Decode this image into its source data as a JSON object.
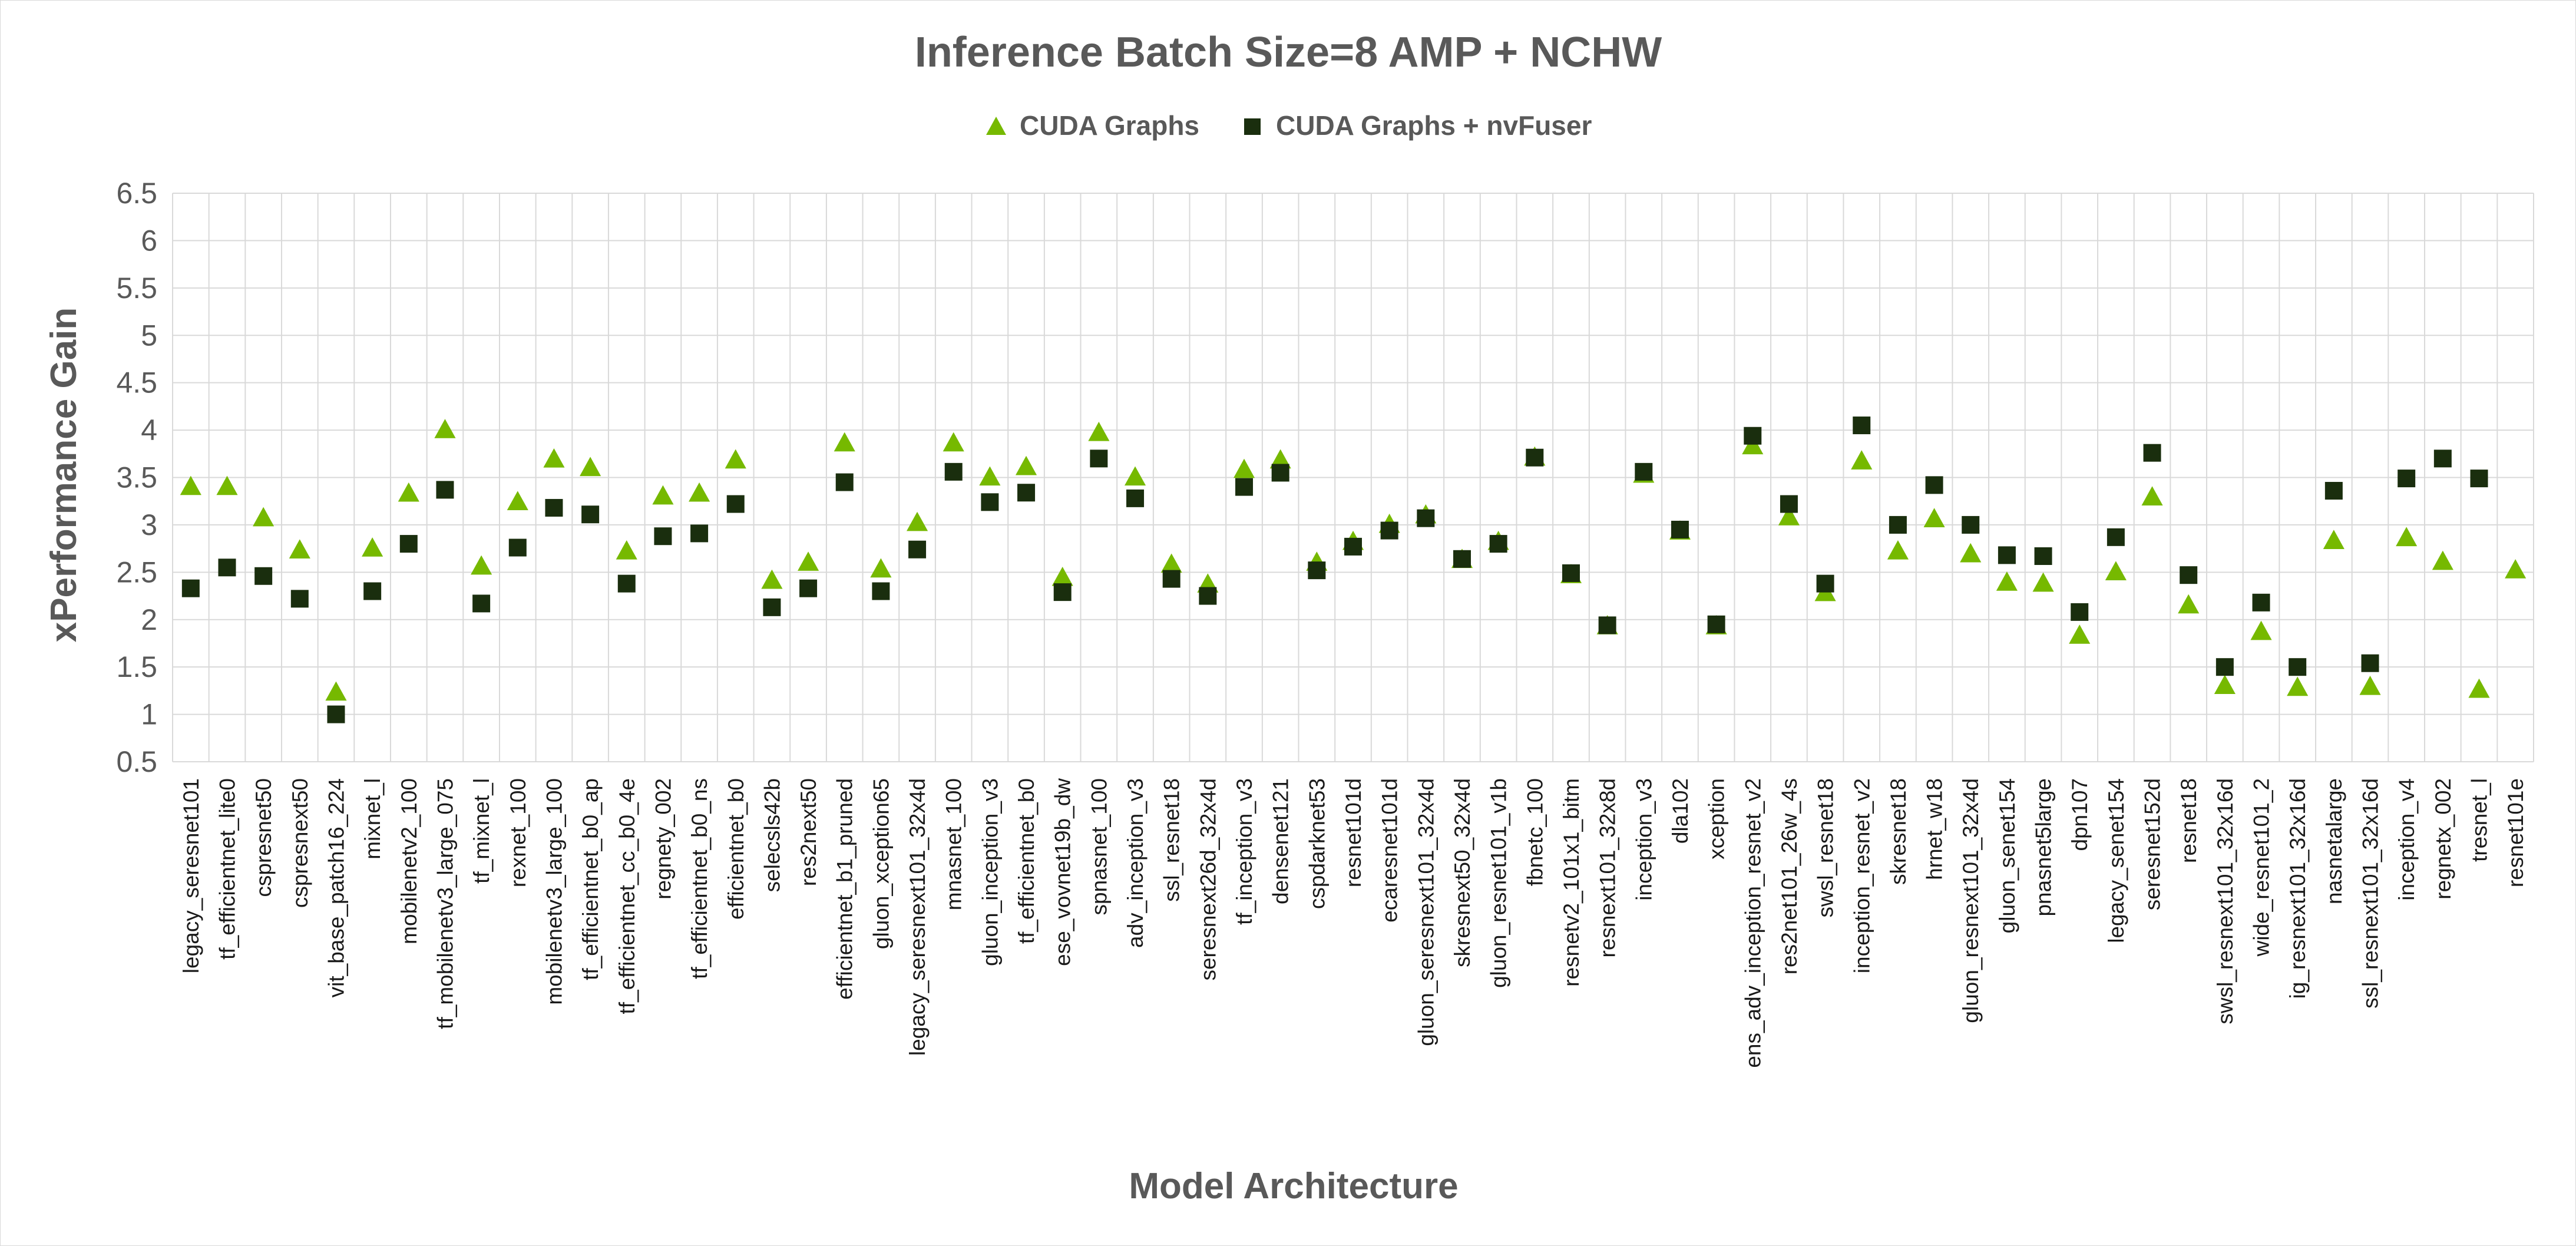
{
  "chart_data": {
    "type": "scatter",
    "title": "Inference Batch Size=8 AMP + NCHW",
    "xlabel": "Model Architecture",
    "ylabel": "xPerformance Gain",
    "ylim": [
      0.5,
      6.5
    ],
    "yticks": [
      "0.5",
      "1",
      "1.5",
      "2",
      "2.5",
      "3",
      "3.5",
      "4",
      "4.5",
      "5",
      "5.5",
      "6",
      "6.5"
    ],
    "grid": true,
    "legend_position": "top-center",
    "categories": [
      "legacy_seresnet101",
      "tf_efficientnet_lite0",
      "cspresnet50",
      "cspresnext50",
      "vit_base_patch16_224",
      "mixnet_l",
      "mobilenetv2_100",
      "tf_mobilenetv3_large_075",
      "tf_mixnet_l",
      "rexnet_100",
      "mobilenetv3_large_100",
      "tf_efficientnet_b0_ap",
      "tf_efficientnet_cc_b0_4e",
      "regnety_002",
      "tf_efficientnet_b0_ns",
      "efficientnet_b0",
      "selecsls42b",
      "res2next50",
      "efficientnet_b1_pruned",
      "gluon_xception65",
      "legacy_seresnext101_32x4d",
      "mnasnet_100",
      "gluon_inception_v3",
      "tf_efficientnet_b0",
      "ese_vovnet19b_dw",
      "spnasnet_100",
      "adv_inception_v3",
      "ssl_resnet18",
      "seresnext26d_32x4d",
      "tf_inception_v3",
      "densenet121",
      "cspdarknet53",
      "resnet101d",
      "ecaresnet101d",
      "gluon_seresnext101_32x4d",
      "skresnext50_32x4d",
      "gluon_resnet101_v1b",
      "fbnetc_100",
      "resnetv2_101x1_bitm",
      "resnext101_32x8d",
      "inception_v3",
      "dla102",
      "xception",
      "ens_adv_inception_resnet_v2",
      "res2net101_26w_4s",
      "swsl_resnet18",
      "inception_resnet_v2",
      "skresnet18",
      "hrnet_w18",
      "gluon_resnext101_32x4d",
      "gluon_senet154",
      "pnasnet5large",
      "dpn107",
      "legacy_senet154",
      "seresnet152d",
      "resnet18",
      "swsl_resnext101_32x16d",
      "wide_resnet101_2",
      "ig_resnext101_32x16d",
      "nasnetalarge",
      "ssl_resnext101_32x16d",
      "inception_v4",
      "regnetx_002",
      "tresnet_l",
      "resnet101e"
    ],
    "series": [
      {
        "name": "CUDA Graphs",
        "marker": "triangle",
        "color": "#76b900",
        "values": [
          3.4,
          3.4,
          3.07,
          2.73,
          1.23,
          2.75,
          3.33,
          4.0,
          2.56,
          3.24,
          3.69,
          3.6,
          2.72,
          3.3,
          3.33,
          3.68,
          2.41,
          2.6,
          3.86,
          2.53,
          3.02,
          3.86,
          3.5,
          3.61,
          2.44,
          3.97,
          3.5,
          2.58,
          2.37,
          3.58,
          3.68,
          2.6,
          2.82,
          3.0,
          3.1,
          2.63,
          2.82,
          3.71,
          2.47,
          1.93,
          3.53,
          2.93,
          1.93,
          3.83,
          3.08,
          2.28,
          3.67,
          2.72,
          3.06,
          2.69,
          2.39,
          2.38,
          1.83,
          2.5,
          3.29,
          2.15,
          1.3,
          1.87,
          1.28,
          2.83,
          1.29,
          2.86,
          2.61,
          1.26,
          2.52
        ]
      },
      {
        "name": "CUDA Graphs + nvFuser",
        "marker": "square",
        "color": "#1a2e0e",
        "values": [
          2.33,
          2.55,
          2.46,
          2.22,
          1.0,
          2.3,
          2.8,
          3.37,
          2.17,
          2.76,
          3.18,
          3.11,
          2.38,
          2.88,
          2.91,
          3.22,
          2.13,
          2.33,
          3.45,
          2.3,
          2.74,
          3.56,
          3.24,
          3.34,
          2.29,
          3.7,
          3.28,
          2.43,
          2.25,
          3.4,
          3.55,
          2.52,
          2.77,
          2.94,
          3.07,
          2.64,
          2.8,
          3.71,
          2.49,
          1.94,
          3.56,
          2.95,
          1.95,
          3.94,
          3.22,
          2.38,
          4.05,
          3.0,
          3.42,
          3.0,
          2.68,
          2.67,
          2.08,
          2.87,
          3.76,
          2.47,
          1.5,
          2.18,
          1.5,
          3.36,
          1.54,
          3.49,
          3.7,
          3.49,
          null
        ]
      }
    ]
  }
}
